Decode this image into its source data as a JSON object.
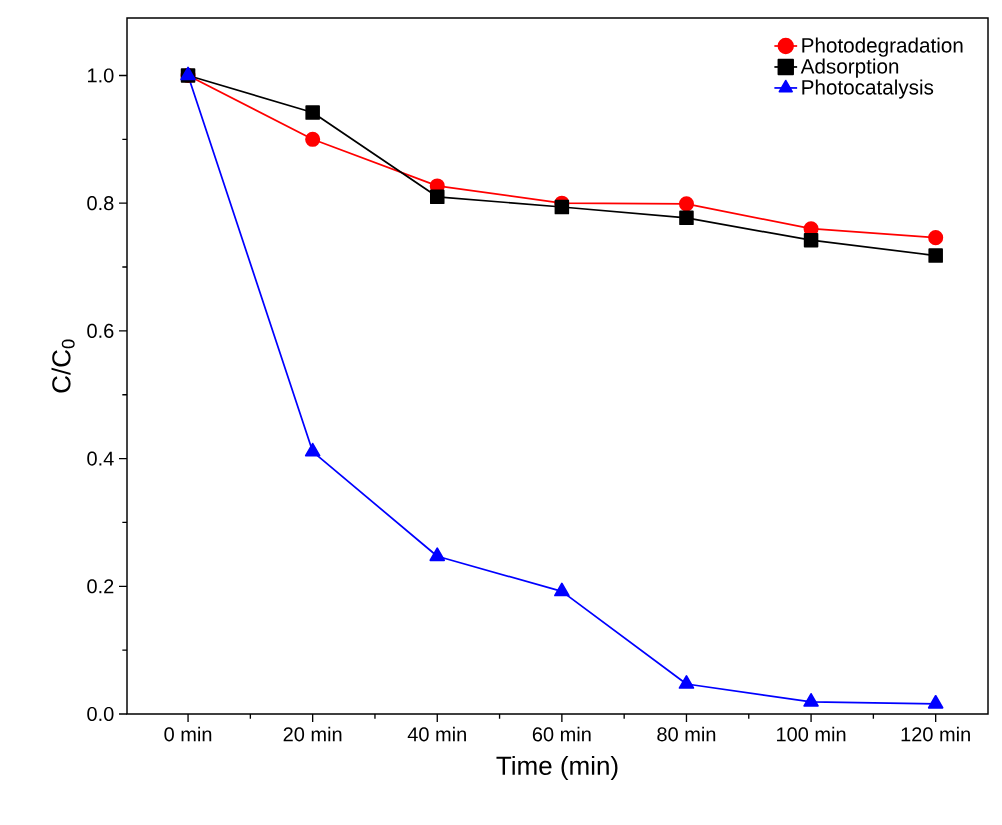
{
  "chart_data": {
    "type": "line",
    "xlabel": "Time (min)",
    "ylabel": "C/C$_{0}$",
    "categories": [
      "0 min",
      "20 min",
      "40 min",
      "60 min",
      "80 min",
      "100 min",
      "120 min"
    ],
    "series": [
      {
        "name": "Photodegradation",
        "color": "#ff0000",
        "marker": "circle",
        "values": [
          1.0,
          0.9,
          0.827,
          0.8,
          0.799,
          0.76,
          0.746
        ]
      },
      {
        "name": "Adsorption",
        "color": "#000000",
        "marker": "square",
        "values": [
          1.0,
          0.942,
          0.81,
          0.794,
          0.777,
          0.742,
          0.718
        ]
      },
      {
        "name": "Photocatalysis",
        "color": "#0000ff",
        "marker": "triangle",
        "values": [
          1.0,
          0.411,
          0.247,
          0.192,
          0.047,
          0.019,
          0.016
        ]
      }
    ],
    "ylim": [
      0,
      1.09
    ],
    "yticks": [
      {
        "value": 0,
        "label": "0.0"
      },
      0.2,
      0.4,
      0.6,
      0.8,
      {
        "value": 1,
        "label": "1.0"
      }
    ],
    "grid": false,
    "legend": "top right"
  }
}
